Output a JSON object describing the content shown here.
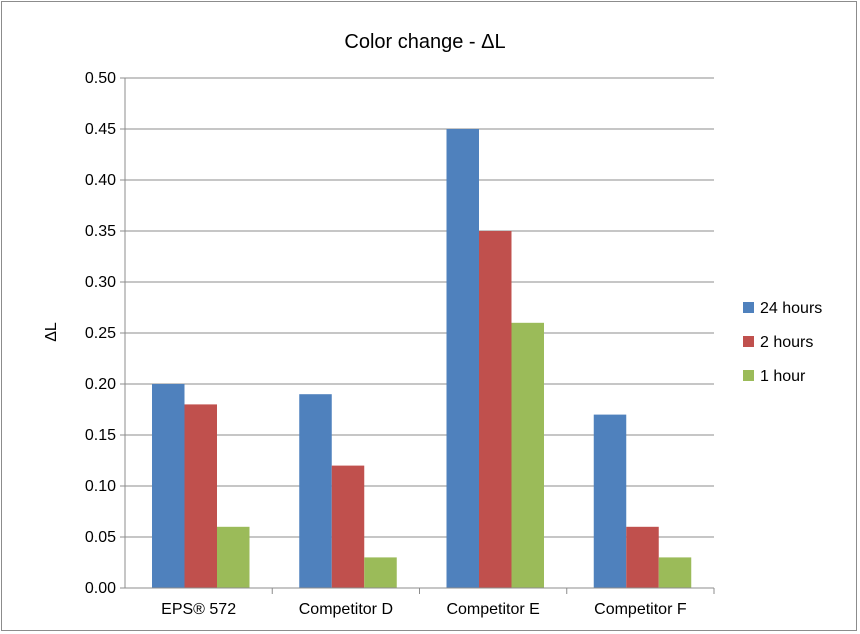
{
  "chart_data": {
    "type": "bar",
    "title": "Color change - ΔL",
    "xlabel": "",
    "ylabel": "ΔL",
    "categories": [
      "EPS® 572",
      "Competitor D",
      "Competitor E",
      "Competitor F"
    ],
    "series": [
      {
        "name": "24 hours",
        "values": [
          0.2,
          0.19,
          0.45,
          0.17
        ],
        "color": "#4f81bd"
      },
      {
        "name": "2 hours",
        "values": [
          0.18,
          0.12,
          0.35,
          0.06
        ],
        "color": "#c0504d"
      },
      {
        "name": "1 hour",
        "values": [
          0.06,
          0.03,
          0.26,
          0.03
        ],
        "color": "#9bbb59"
      }
    ],
    "ylim": [
      0,
      0.5
    ],
    "yticks": [
      "0.00",
      "0.05",
      "0.10",
      "0.15",
      "0.20",
      "0.25",
      "0.30",
      "0.35",
      "0.40",
      "0.45",
      "0.50"
    ],
    "grid": true,
    "legend_position": "right"
  }
}
